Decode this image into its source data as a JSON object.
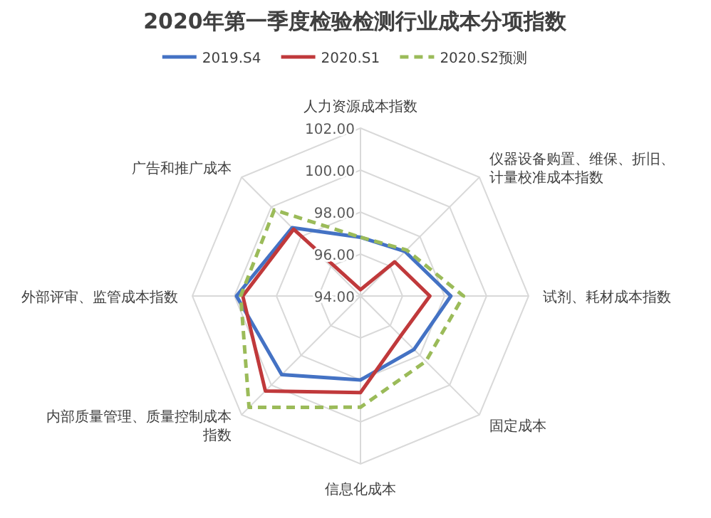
{
  "chart_data": {
    "type": "radar",
    "title": "2020年第一季度检验检测行业成本分项指数",
    "categories": [
      "人力资源成本指数",
      "仪器设备购置、维保、折旧、计量校准成本指数",
      "试剂、耗材成本指数",
      "固定成本",
      "信息化成本",
      "内部质量管理、质量控制成本指数",
      "外部评审、监管成本指数",
      "广告和推广成本"
    ],
    "series": [
      {
        "name": "2019.S4",
        "color": "#4472c4",
        "values": [
          96.8,
          97.0,
          98.3,
          97.6,
          98.0,
          99.3,
          99.9,
          98.6
        ]
      },
      {
        "name": "2020.S1",
        "color": "#c0393b",
        "values": [
          94.3,
          96.3,
          97.3,
          96.7,
          98.6,
          100.4,
          99.6,
          98.5
        ]
      },
      {
        "name": "2020.S2预测",
        "color": "#9bbb59",
        "line_style": "dashed",
        "values": [
          96.8,
          97.1,
          98.9,
          98.4,
          99.3,
          101.5,
          99.7,
          99.8
        ]
      }
    ],
    "ylim": [
      94,
      102
    ],
    "yticks": [
      {
        "value": 94,
        "label": "94.00"
      },
      {
        "value": 96,
        "label": "96.00"
      },
      {
        "value": 98,
        "label": "98.00"
      },
      {
        "value": 100,
        "label": "100.00"
      },
      {
        "value": 102,
        "label": "102.00"
      }
    ],
    "legend": "top",
    "line_style": "solid"
  }
}
